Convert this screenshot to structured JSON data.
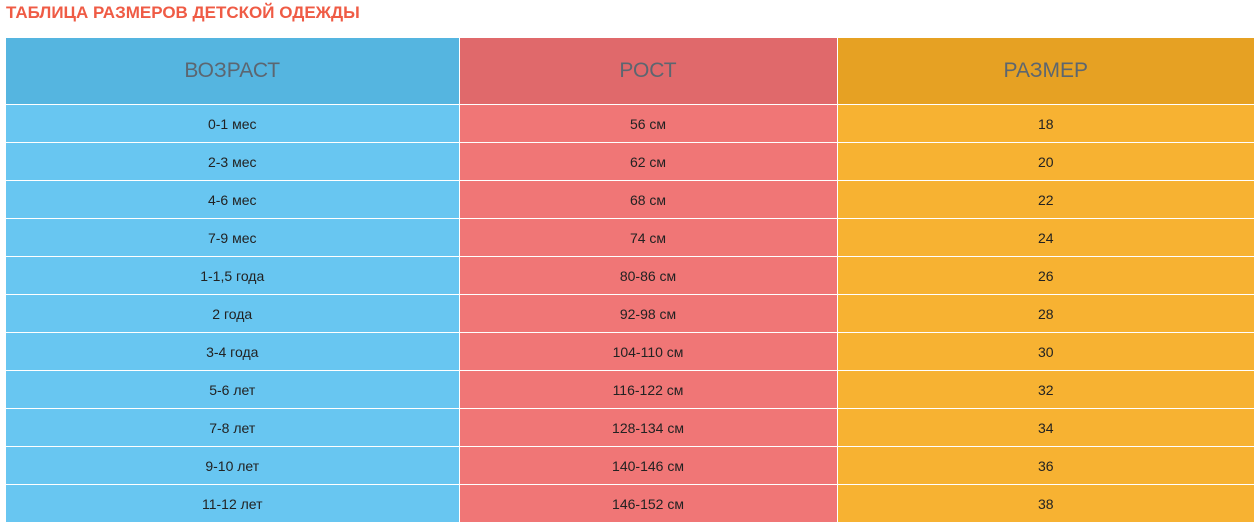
{
  "title": "ТАБЛИЦА РАЗМЕРОВ ДЕТСКОЙ ОДЕЖДЫ",
  "colors": {
    "title": "#ef5b45",
    "age_header": "#55b5e0",
    "age_cell": "#68c6f1",
    "height_header": "#e0696b",
    "height_cell": "#f07676",
    "size_header": "#e6a123",
    "size_cell": "#f7b232"
  },
  "table": {
    "headers": [
      "ВОЗРАСТ",
      "РОСТ",
      "РАЗМЕР"
    ],
    "rows": [
      [
        "0-1 мес",
        "56 см",
        "18"
      ],
      [
        "2-3 мес",
        "62 см",
        "20"
      ],
      [
        "4-6 мес",
        "68 см",
        "22"
      ],
      [
        "7-9 мес",
        "74 см",
        "24"
      ],
      [
        "1-1,5 года",
        "80-86 см",
        "26"
      ],
      [
        "2 года",
        "92-98 см",
        "28"
      ],
      [
        "3-4 года",
        "104-110 см",
        "30"
      ],
      [
        "5-6 лет",
        "116-122 см",
        "32"
      ],
      [
        "7-8 лет",
        "128-134 см",
        "34"
      ],
      [
        "9-10 лет",
        "140-146 см",
        "36"
      ],
      [
        "11-12 лет",
        "146-152 см",
        "38"
      ]
    ]
  }
}
